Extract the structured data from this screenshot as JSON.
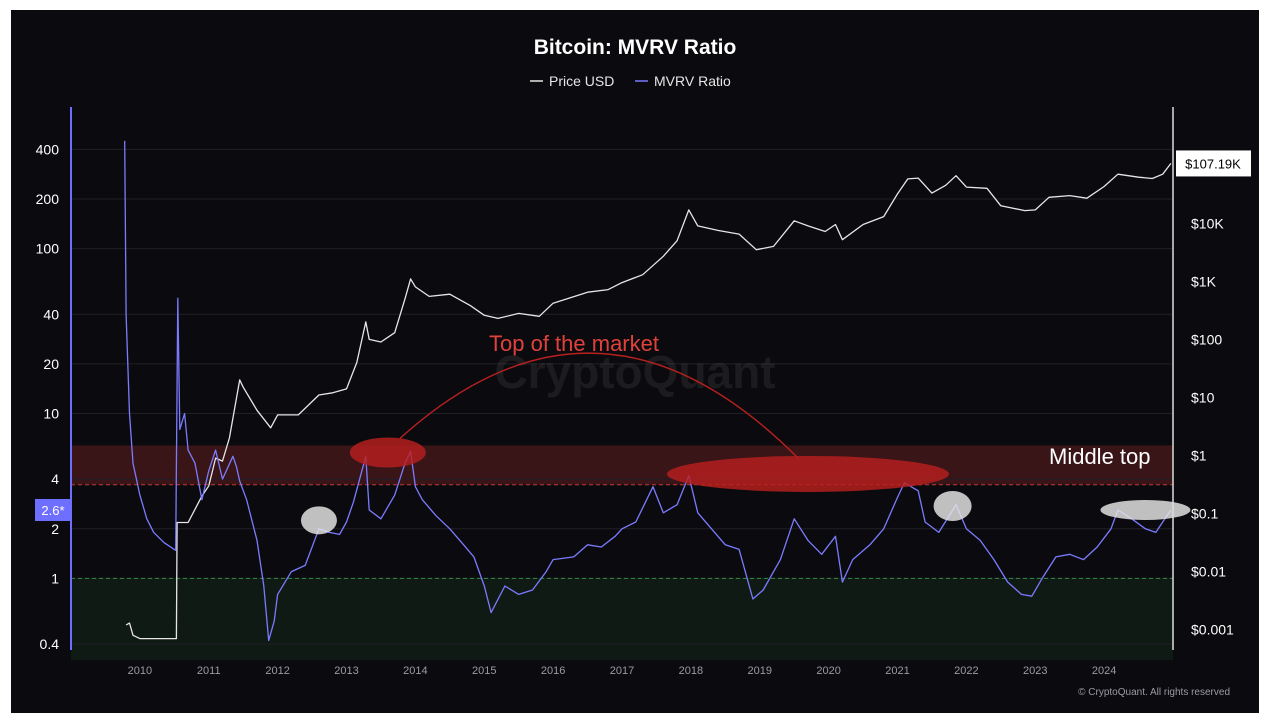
{
  "chart_data": {
    "type": "line",
    "title": "Bitcoin: MVRV Ratio",
    "legend": {
      "placement": "top-center",
      "items": [
        {
          "label": "Price USD",
          "color": "#e6e6e6"
        },
        {
          "label": "MVRV Ratio",
          "color": "#7b7bff"
        }
      ]
    },
    "watermark": "CryptoQuant",
    "credit": "© CryptoQuant. All rights reserved",
    "x_ticks": [
      "2010",
      "2011",
      "2012",
      "2013",
      "2014",
      "2015",
      "2016",
      "2017",
      "2018",
      "2019",
      "2020",
      "2021",
      "2022",
      "2023",
      "2024"
    ],
    "x_range": [
      2009.0,
      2025.0
    ],
    "left_axis": {
      "scale": "log",
      "range": [
        0.32,
        620
      ],
      "ticks": [
        {
          "value": 0.4,
          "label": "0.4"
        },
        {
          "value": 1,
          "label": "1"
        },
        {
          "value": 2,
          "label": "2"
        },
        {
          "value": 4,
          "label": "4"
        },
        {
          "value": 10,
          "label": "10"
        },
        {
          "value": 20,
          "label": "20"
        },
        {
          "value": 40,
          "label": "40"
        },
        {
          "value": 100,
          "label": "100"
        },
        {
          "value": 200,
          "label": "200"
        },
        {
          "value": 400,
          "label": "400"
        }
      ],
      "current_value_label": "2.6*"
    },
    "right_axis": {
      "scale": "log",
      "range": [
        0.0003,
        650000
      ],
      "ticks": [
        {
          "value": 0.001,
          "label": "$0.001"
        },
        {
          "value": 0.01,
          "label": "$0.01"
        },
        {
          "value": 0.1,
          "label": "$0.1"
        },
        {
          "value": 1,
          "label": "$1"
        },
        {
          "value": 10,
          "label": "$10"
        },
        {
          "value": 100,
          "label": "$100"
        },
        {
          "value": 1000,
          "label": "$1K"
        },
        {
          "value": 10000,
          "label": "$10K"
        }
      ],
      "current_value_label": "$107.19K"
    },
    "bands": [
      {
        "name": "overvalued-zone",
        "from": 3.7,
        "to": 6.4,
        "color": "#3a1518"
      },
      {
        "name": "undervalued-zone",
        "from": 0.32,
        "to": 1.0,
        "color": "#101a14"
      }
    ],
    "reference_lines": [
      {
        "value": 3.7,
        "color": "#c0393b"
      },
      {
        "value": 1.0,
        "color": "#2f8f3f"
      }
    ],
    "annotations": [
      {
        "text": "Top of the market",
        "color": "#e0413b"
      },
      {
        "text": "Middle top",
        "color": "#ffffff"
      }
    ],
    "highlights": {
      "red": [
        {
          "x": 2013.6,
          "y": 5.8
        },
        {
          "x": 2019.7,
          "y": 4.3
        }
      ],
      "white": [
        {
          "x": 2012.6,
          "y": 2.25
        },
        {
          "x": 2021.8,
          "y": 2.75
        },
        {
          "x": 2024.6,
          "y": 2.6
        }
      ]
    },
    "series": [
      {
        "name": "Price USD",
        "axis": "right",
        "color": "#e6e6e6",
        "points": [
          [
            2009.8,
            0.0012
          ],
          [
            2009.85,
            0.0013
          ],
          [
            2009.9,
            0.0008
          ],
          [
            2010.0,
            0.0007
          ],
          [
            2010.3,
            0.0007
          ],
          [
            2010.53,
            0.0007
          ],
          [
            2010.54,
            0.07
          ],
          [
            2010.7,
            0.07
          ],
          [
            2010.9,
            0.2
          ],
          [
            2011.0,
            0.3
          ],
          [
            2011.1,
            0.9
          ],
          [
            2011.2,
            0.8
          ],
          [
            2011.3,
            2
          ],
          [
            2011.45,
            20
          ],
          [
            2011.5,
            15
          ],
          [
            2011.7,
            6
          ],
          [
            2011.9,
            3
          ],
          [
            2012.0,
            5
          ],
          [
            2012.3,
            5
          ],
          [
            2012.6,
            11
          ],
          [
            2012.8,
            12
          ],
          [
            2013.0,
            14
          ],
          [
            2013.15,
            40
          ],
          [
            2013.28,
            200
          ],
          [
            2013.33,
            100
          ],
          [
            2013.5,
            90
          ],
          [
            2013.7,
            130
          ],
          [
            2013.85,
            500
          ],
          [
            2013.93,
            1100
          ],
          [
            2014.0,
            800
          ],
          [
            2014.2,
            550
          ],
          [
            2014.5,
            600
          ],
          [
            2014.8,
            380
          ],
          [
            2015.0,
            260
          ],
          [
            2015.2,
            230
          ],
          [
            2015.5,
            280
          ],
          [
            2015.8,
            250
          ],
          [
            2016.0,
            420
          ],
          [
            2016.5,
            650
          ],
          [
            2016.8,
            720
          ],
          [
            2017.0,
            950
          ],
          [
            2017.3,
            1300
          ],
          [
            2017.6,
            2700
          ],
          [
            2017.8,
            5000
          ],
          [
            2017.97,
            17000
          ],
          [
            2018.1,
            9000
          ],
          [
            2018.4,
            7500
          ],
          [
            2018.7,
            6500
          ],
          [
            2018.95,
            3500
          ],
          [
            2019.2,
            4000
          ],
          [
            2019.5,
            11000
          ],
          [
            2019.7,
            9000
          ],
          [
            2019.95,
            7200
          ],
          [
            2020.1,
            9500
          ],
          [
            2020.2,
            5200
          ],
          [
            2020.5,
            9500
          ],
          [
            2020.8,
            13000
          ],
          [
            2021.0,
            32000
          ],
          [
            2021.15,
            58000
          ],
          [
            2021.3,
            60000
          ],
          [
            2021.5,
            33000
          ],
          [
            2021.7,
            45000
          ],
          [
            2021.85,
            66000
          ],
          [
            2022.0,
            42000
          ],
          [
            2022.3,
            40000
          ],
          [
            2022.5,
            20000
          ],
          [
            2022.85,
            16500
          ],
          [
            2023.0,
            17000
          ],
          [
            2023.2,
            28000
          ],
          [
            2023.5,
            30000
          ],
          [
            2023.75,
            27000
          ],
          [
            2024.0,
            43000
          ],
          [
            2024.2,
            70000
          ],
          [
            2024.5,
            62000
          ],
          [
            2024.7,
            59000
          ],
          [
            2024.85,
            70000
          ],
          [
            2024.97,
            107190
          ]
        ]
      },
      {
        "name": "MVRV Ratio",
        "axis": "left",
        "color": "#7b7bff",
        "points": [
          [
            2009.78,
            450
          ],
          [
            2009.8,
            40
          ],
          [
            2009.85,
            10
          ],
          [
            2009.9,
            5
          ],
          [
            2010.0,
            3.2
          ],
          [
            2010.1,
            2.3
          ],
          [
            2010.2,
            1.9
          ],
          [
            2010.35,
            1.65
          ],
          [
            2010.5,
            1.5
          ],
          [
            2010.52,
            1.48
          ],
          [
            2010.55,
            50
          ],
          [
            2010.58,
            8
          ],
          [
            2010.65,
            10
          ],
          [
            2010.7,
            6
          ],
          [
            2010.8,
            5
          ],
          [
            2010.9,
            3
          ],
          [
            2011.0,
            4.5
          ],
          [
            2011.1,
            6
          ],
          [
            2011.2,
            4
          ],
          [
            2011.35,
            5.5
          ],
          [
            2011.4,
            4.8
          ],
          [
            2011.45,
            3.9
          ],
          [
            2011.55,
            3
          ],
          [
            2011.7,
            1.7
          ],
          [
            2011.8,
            0.9
          ],
          [
            2011.87,
            0.42
          ],
          [
            2011.95,
            0.55
          ],
          [
            2012.0,
            0.8
          ],
          [
            2012.2,
            1.1
          ],
          [
            2012.4,
            1.2
          ],
          [
            2012.6,
            2.0
          ],
          [
            2012.75,
            1.9
          ],
          [
            2012.9,
            1.85
          ],
          [
            2013.0,
            2.2
          ],
          [
            2013.1,
            2.9
          ],
          [
            2013.28,
            5.5
          ],
          [
            2013.33,
            2.6
          ],
          [
            2013.5,
            2.3
          ],
          [
            2013.7,
            3.2
          ],
          [
            2013.85,
            5.0
          ],
          [
            2013.93,
            5.9
          ],
          [
            2014.0,
            3.6
          ],
          [
            2014.1,
            3.0
          ],
          [
            2014.3,
            2.4
          ],
          [
            2014.5,
            2.0
          ],
          [
            2014.7,
            1.6
          ],
          [
            2014.85,
            1.35
          ],
          [
            2015.0,
            0.9
          ],
          [
            2015.1,
            0.62
          ],
          [
            2015.3,
            0.9
          ],
          [
            2015.5,
            0.8
          ],
          [
            2015.7,
            0.85
          ],
          [
            2015.9,
            1.1
          ],
          [
            2016.0,
            1.3
          ],
          [
            2016.3,
            1.35
          ],
          [
            2016.5,
            1.6
          ],
          [
            2016.7,
            1.55
          ],
          [
            2016.9,
            1.8
          ],
          [
            2017.0,
            2.0
          ],
          [
            2017.2,
            2.2
          ],
          [
            2017.45,
            3.6
          ],
          [
            2017.6,
            2.5
          ],
          [
            2017.8,
            2.8
          ],
          [
            2017.97,
            4.2
          ],
          [
            2018.1,
            2.5
          ],
          [
            2018.3,
            2.0
          ],
          [
            2018.5,
            1.6
          ],
          [
            2018.7,
            1.5
          ],
          [
            2018.9,
            0.75
          ],
          [
            2019.05,
            0.85
          ],
          [
            2019.3,
            1.3
          ],
          [
            2019.5,
            2.3
          ],
          [
            2019.7,
            1.7
          ],
          [
            2019.9,
            1.4
          ],
          [
            2020.1,
            1.8
          ],
          [
            2020.2,
            0.95
          ],
          [
            2020.35,
            1.3
          ],
          [
            2020.6,
            1.6
          ],
          [
            2020.8,
            2.0
          ],
          [
            2021.0,
            3.1
          ],
          [
            2021.1,
            3.8
          ],
          [
            2021.3,
            3.4
          ],
          [
            2021.4,
            2.2
          ],
          [
            2021.6,
            1.9
          ],
          [
            2021.85,
            2.8
          ],
          [
            2022.0,
            2.0
          ],
          [
            2022.2,
            1.7
          ],
          [
            2022.4,
            1.3
          ],
          [
            2022.6,
            0.95
          ],
          [
            2022.8,
            0.8
          ],
          [
            2022.95,
            0.78
          ],
          [
            2023.1,
            1.0
          ],
          [
            2023.3,
            1.35
          ],
          [
            2023.5,
            1.4
          ],
          [
            2023.7,
            1.3
          ],
          [
            2023.9,
            1.55
          ],
          [
            2024.1,
            2.0
          ],
          [
            2024.2,
            2.6
          ],
          [
            2024.4,
            2.3
          ],
          [
            2024.6,
            2.0
          ],
          [
            2024.75,
            1.9
          ],
          [
            2024.85,
            2.2
          ],
          [
            2024.97,
            2.6
          ]
        ]
      }
    ]
  }
}
